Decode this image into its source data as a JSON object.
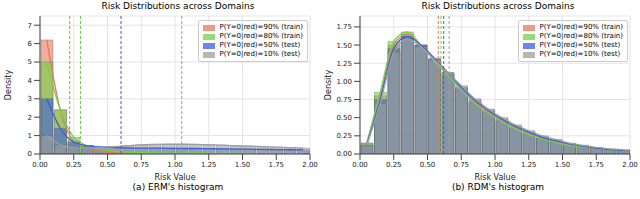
{
  "chart_data": [
    {
      "type": "histogram",
      "title": "Risk Distributions across Domains",
      "caption": "(a) ERM's histogram",
      "x_label": "Risk Value",
      "y_label": "Density",
      "grid": true,
      "legend": "upper right",
      "bins": [
        0,
        0.1,
        0.2,
        0.3,
        0.4,
        0.5,
        0.6,
        0.7,
        0.8,
        0.9,
        1.0,
        1.1,
        1.2,
        1.3,
        1.4,
        1.5,
        1.6,
        1.7,
        1.8,
        1.9,
        2.0
      ],
      "xlim": [
        0,
        2
      ],
      "xticks": [
        {
          "value": 0,
          "label": "0.00"
        },
        {
          "value": 0.25,
          "label": "0.25"
        },
        {
          "value": 0.5,
          "label": "0.50"
        },
        {
          "value": 0.75,
          "label": "0.75"
        },
        {
          "value": 1,
          "label": "1.00"
        },
        {
          "value": 1.25,
          "label": "1.25"
        },
        {
          "value": 1.5,
          "label": "1.50"
        },
        {
          "value": 1.75,
          "label": "1.75"
        },
        {
          "value": 2,
          "label": "2.00"
        }
      ],
      "ylim": [
        0,
        7.5
      ],
      "yticks": [
        0,
        1,
        2,
        3,
        4,
        5,
        6,
        7
      ],
      "series": [
        {
          "name": "P(Y=0|red)=90% (train)",
          "color": "#e8775e",
          "mean": 0.22,
          "values": [
            6.2,
            2.4,
            0.7,
            0.3,
            0.15,
            0.08,
            0.05,
            0.03,
            0.02,
            0.02,
            0.01,
            0.01,
            0.01,
            0.01,
            0.01,
            0.01,
            0,
            0,
            0,
            0
          ]
        },
        {
          "name": "P(Y=0|red)=80% (train)",
          "color": "#6fd44a",
          "mean": 0.3,
          "values": [
            5.0,
            2.4,
            0.9,
            0.45,
            0.25,
            0.15,
            0.1,
            0.08,
            0.06,
            0.05,
            0.05,
            0.04,
            0.04,
            0.03,
            0.03,
            0.03,
            0.02,
            0.02,
            0.02,
            0.02
          ]
        },
        {
          "name": "P(Y=0|red)=50% (test)",
          "color": "#3b5fd6",
          "mean": 0.6,
          "values": [
            3.0,
            1.4,
            0.65,
            0.45,
            0.38,
            0.35,
            0.33,
            0.32,
            0.32,
            0.31,
            0.3,
            0.3,
            0.29,
            0.28,
            0.27,
            0.26,
            0.25,
            0.24,
            0.23,
            0.22
          ]
        },
        {
          "name": "P(Y=0|red)=10% (test)",
          "color": "#9e9e9e",
          "mean": 1.05,
          "values": [
            1.0,
            0.5,
            0.35,
            0.32,
            0.35,
            0.4,
            0.45,
            0.5,
            0.52,
            0.53,
            0.53,
            0.52,
            0.5,
            0.48,
            0.45,
            0.42,
            0.4,
            0.37,
            0.35,
            0.32
          ]
        }
      ]
    },
    {
      "type": "histogram",
      "title": "Risk Distributions across Domains",
      "caption": "(b) RDM's histogram",
      "x_label": "Risk Value",
      "y_label": "Density",
      "grid": true,
      "legend": "upper right",
      "bins": [
        0,
        0.1,
        0.2,
        0.3,
        0.4,
        0.5,
        0.6,
        0.7,
        0.8,
        0.9,
        1.0,
        1.1,
        1.2,
        1.3,
        1.4,
        1.5,
        1.6,
        1.7,
        1.8,
        1.9,
        2.0
      ],
      "xlim": [
        0,
        2
      ],
      "xticks": [
        {
          "value": 0,
          "label": "0.00"
        },
        {
          "value": 0.25,
          "label": "0.25"
        },
        {
          "value": 0.5,
          "label": "0.50"
        },
        {
          "value": 0.75,
          "label": "0.75"
        },
        {
          "value": 1,
          "label": "1.00"
        },
        {
          "value": 1.25,
          "label": "1.25"
        },
        {
          "value": 1.5,
          "label": "1.50"
        },
        {
          "value": 1.75,
          "label": "1.75"
        },
        {
          "value": 2,
          "label": "2.00"
        }
      ],
      "ylim": [
        0,
        1.9
      ],
      "yticks": [
        {
          "value": 0,
          "label": "0.00"
        },
        {
          "value": 0.25,
          "label": "0.25"
        },
        {
          "value": 0.5,
          "label": "0.50"
        },
        {
          "value": 0.75,
          "label": "0.75"
        },
        {
          "value": 1,
          "label": "1.00"
        },
        {
          "value": 1.25,
          "label": "1.25"
        },
        {
          "value": 1.5,
          "label": "1.50"
        },
        {
          "value": 1.75,
          "label": "1.75"
        }
      ],
      "series": [
        {
          "name": "P(Y=0|red)=90% (train)",
          "color": "#e8775e",
          "mean": 0.58,
          "values": [
            0.15,
            0.8,
            1.5,
            1.65,
            1.5,
            1.3,
            1.1,
            0.9,
            0.72,
            0.58,
            0.46,
            0.36,
            0.28,
            0.22,
            0.17,
            0.13,
            0.1,
            0.08,
            0.06,
            0.05
          ]
        },
        {
          "name": "P(Y=0|red)=80% (train)",
          "color": "#6fd44a",
          "mean": 0.6,
          "values": [
            0.15,
            0.85,
            1.55,
            1.68,
            1.5,
            1.28,
            1.08,
            0.88,
            0.7,
            0.56,
            0.45,
            0.35,
            0.27,
            0.21,
            0.16,
            0.12,
            0.1,
            0.08,
            0.06,
            0.05
          ]
        },
        {
          "name": "P(Y=0|red)=50% (test)",
          "color": "#3b5fd6",
          "mean": 0.62,
          "values": [
            0.12,
            0.75,
            1.45,
            1.62,
            1.5,
            1.32,
            1.12,
            0.92,
            0.74,
            0.6,
            0.48,
            0.38,
            0.3,
            0.23,
            0.18,
            0.14,
            0.11,
            0.08,
            0.06,
            0.05
          ]
        },
        {
          "name": "P(Y=0|red)=10% (test)",
          "color": "#9e9e9e",
          "mean": 0.66,
          "values": [
            0.12,
            0.7,
            1.4,
            1.58,
            1.48,
            1.3,
            1.12,
            0.94,
            0.76,
            0.62,
            0.5,
            0.4,
            0.32,
            0.25,
            0.2,
            0.15,
            0.12,
            0.09,
            0.07,
            0.06
          ]
        }
      ]
    }
  ]
}
